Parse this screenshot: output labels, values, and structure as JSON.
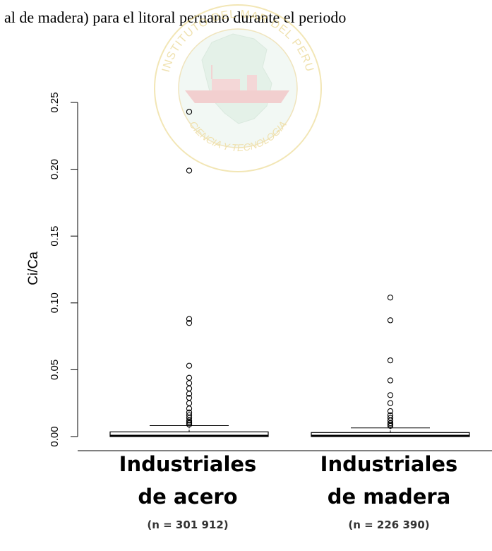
{
  "caption": "al de madera) para el litoral peruano durante el periodo",
  "watermark": {
    "top_text": "INSTITUTO DEL MAR DEL PERU",
    "bottom_text": "CIENCIA Y TECNOLOGIA"
  },
  "chart_data": {
    "type": "boxplot",
    "ylabel": "Ci/Ca",
    "ylim": [
      -0.01,
      0.25
    ],
    "yticks": [
      "0.00",
      "0.05",
      "0.10",
      "0.15",
      "0.20",
      "0.25"
    ],
    "categories": [
      {
        "label_line1": "Industriales",
        "label_line2": "de acero",
        "n_label": "(n = 301 912)"
      },
      {
        "label_line1": "Industriales",
        "label_line2": "de madera",
        "n_label": "(n = 226 390)"
      }
    ],
    "boxes": [
      {
        "q1": 0.0,
        "median": 0.0005,
        "q3": 0.0035,
        "whisker_low": 0.0,
        "whisker_high": 0.0082,
        "outliers": [
          0.243,
          0.199,
          0.088,
          0.085,
          0.053,
          0.044,
          0.04,
          0.036,
          0.032,
          0.029,
          0.025,
          0.021,
          0.018,
          0.016,
          0.014,
          0.012,
          0.011,
          0.01,
          0.009
        ]
      },
      {
        "q1": 0.0,
        "median": 0.0005,
        "q3": 0.003,
        "whisker_low": 0.0,
        "whisker_high": 0.0065,
        "outliers": [
          0.104,
          0.087,
          0.057,
          0.042,
          0.031,
          0.025,
          0.019,
          0.016,
          0.014,
          0.012,
          0.01,
          0.009,
          0.008
        ]
      }
    ]
  }
}
